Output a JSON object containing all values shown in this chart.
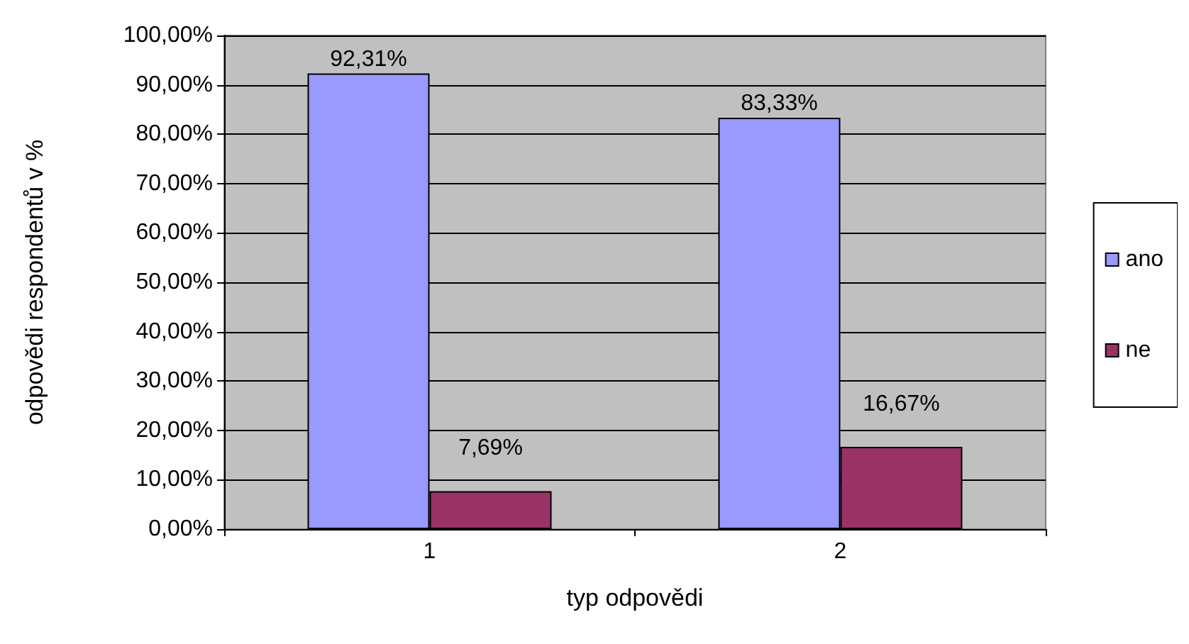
{
  "chart_data": {
    "type": "bar",
    "xlabel": "typ odpovědi",
    "ylabel": "odpovědi respondentů v %",
    "categories": [
      "1",
      "2"
    ],
    "series": [
      {
        "name": "ano",
        "color": "#9999ff",
        "values": [
          92.31,
          83.33
        ],
        "value_labels": [
          "92,31%",
          "83,33%"
        ]
      },
      {
        "name": "ne",
        "color": "#993366",
        "values": [
          7.69,
          16.67
        ],
        "value_labels": [
          "7,69%",
          "16,67%"
        ]
      }
    ],
    "ylim": [
      0,
      100
    ],
    "yticks": [
      {
        "value": 0,
        "label": "0,00%"
      },
      {
        "value": 10,
        "label": "10,00%"
      },
      {
        "value": 20,
        "label": "20,00%"
      },
      {
        "value": 30,
        "label": "30,00%"
      },
      {
        "value": 40,
        "label": "40,00%"
      },
      {
        "value": 50,
        "label": "50,00%"
      },
      {
        "value": 60,
        "label": "60,00%"
      },
      {
        "value": 70,
        "label": "70,00%"
      },
      {
        "value": 80,
        "label": "80,00%"
      },
      {
        "value": 90,
        "label": "90,00%"
      },
      {
        "value": 100,
        "label": "100,00%"
      }
    ],
    "grid": "y",
    "legend": "right"
  }
}
